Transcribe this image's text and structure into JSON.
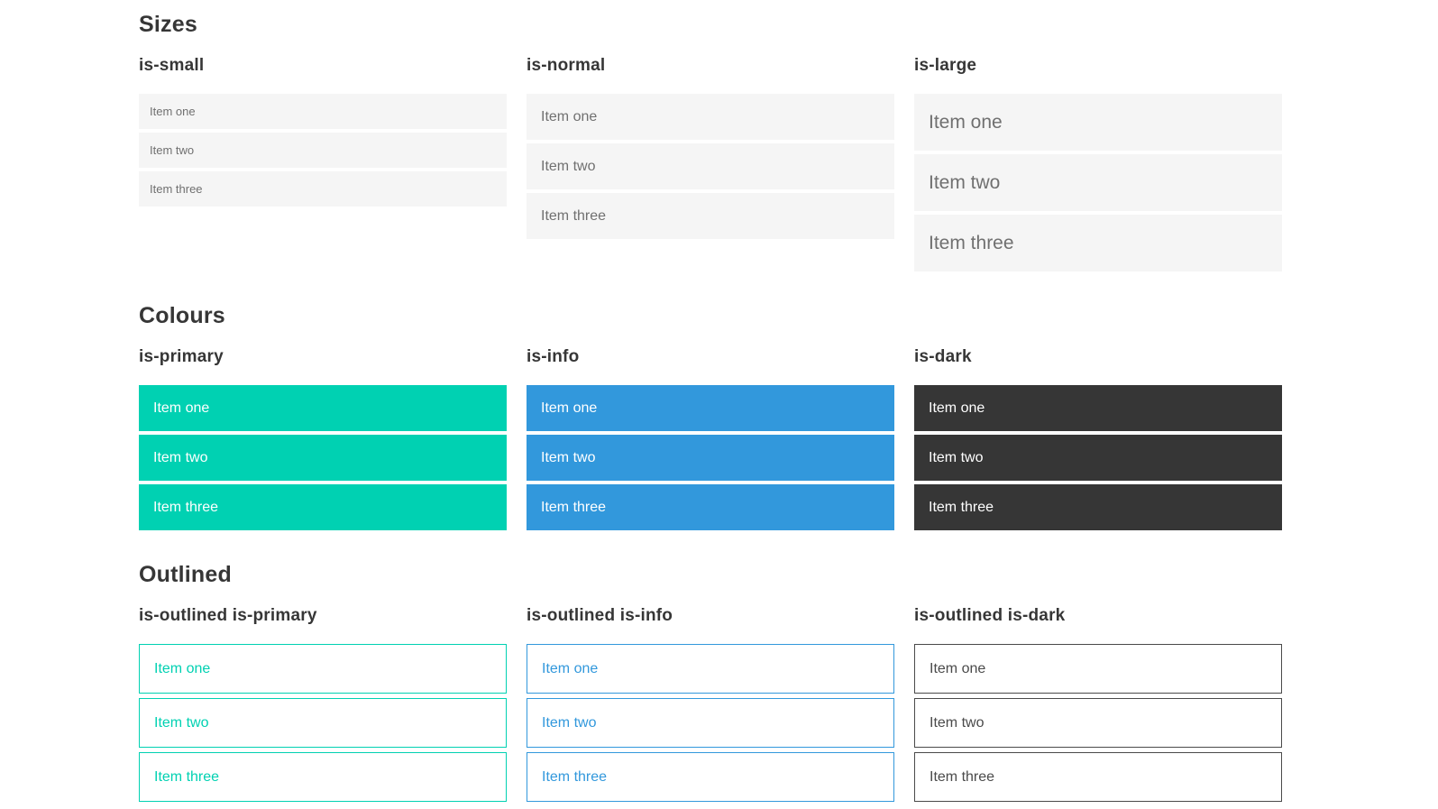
{
  "colors": {
    "primary": "#00d1b2",
    "info": "#3298dc",
    "dark": "#363636",
    "list_background": "#f5f5f5",
    "list_text": "#707070",
    "heading_text": "#363636",
    "page_background": "#ffffff"
  },
  "sections": [
    {
      "title": "Sizes",
      "columns": [
        {
          "label": "is-small",
          "items": [
            "Item one",
            "Item two",
            "Item three"
          ]
        },
        {
          "label": "is-normal",
          "items": [
            "Item one",
            "Item two",
            "Item three"
          ]
        },
        {
          "label": "is-large",
          "items": [
            "Item one",
            "Item two",
            "Item three"
          ]
        }
      ]
    },
    {
      "title": "Colours",
      "columns": [
        {
          "label": "is-primary",
          "items": [
            "Item one",
            "Item two",
            "Item three"
          ]
        },
        {
          "label": "is-info",
          "items": [
            "Item one",
            "Item two",
            "Item three"
          ]
        },
        {
          "label": "is-dark",
          "items": [
            "Item one",
            "Item two",
            "Item three"
          ]
        }
      ]
    },
    {
      "title": "Outlined",
      "columns": [
        {
          "label": "is-outlined is-primary",
          "items": [
            "Item one",
            "Item two",
            "Item three"
          ]
        },
        {
          "label": "is-outlined is-info",
          "items": [
            "Item one",
            "Item two",
            "Item three"
          ]
        },
        {
          "label": "is-outlined is-dark",
          "items": [
            "Item one",
            "Item two",
            "Item three"
          ]
        }
      ]
    }
  ]
}
